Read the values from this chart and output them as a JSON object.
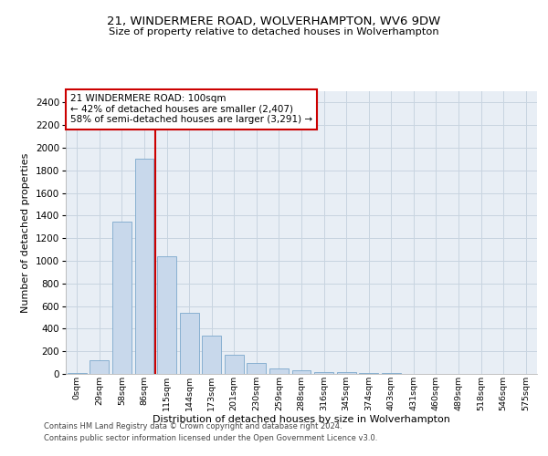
{
  "title1": "21, WINDERMERE ROAD, WOLVERHAMPTON, WV6 9DW",
  "title2": "Size of property relative to detached houses in Wolverhampton",
  "xlabel": "Distribution of detached houses by size in Wolverhampton",
  "ylabel": "Number of detached properties",
  "footnote1": "Contains HM Land Registry data © Crown copyright and database right 2024.",
  "footnote2": "Contains public sector information licensed under the Open Government Licence v3.0.",
  "annotation_title": "21 WINDERMERE ROAD: 100sqm",
  "annotation_line1": "← 42% of detached houses are smaller (2,407)",
  "annotation_line2": "58% of semi-detached houses are larger (3,291) →",
  "property_bin_index": 3,
  "bar_color": "#c8d8eb",
  "bar_edgecolor": "#7ba8cc",
  "redline_color": "#cc0000",
  "annotation_box_edgecolor": "#cc0000",
  "background_color": "#ffffff",
  "grid_color": "#c8d4e0",
  "ax_bg_color": "#e8eef5",
  "categories": [
    "0sqm",
    "29sqm",
    "58sqm",
    "86sqm",
    "115sqm",
    "144sqm",
    "173sqm",
    "201sqm",
    "230sqm",
    "259sqm",
    "288sqm",
    "316sqm",
    "345sqm",
    "374sqm",
    "403sqm",
    "431sqm",
    "460sqm",
    "489sqm",
    "518sqm",
    "546sqm",
    "575sqm"
  ],
  "values": [
    5,
    120,
    1350,
    1900,
    1040,
    540,
    335,
    170,
    100,
    50,
    30,
    20,
    15,
    10,
    5,
    3,
    2,
    1,
    0,
    1,
    0
  ],
  "ylim": [
    0,
    2500
  ],
  "yticks": [
    0,
    200,
    400,
    600,
    800,
    1000,
    1200,
    1400,
    1600,
    1800,
    2000,
    2200,
    2400
  ]
}
